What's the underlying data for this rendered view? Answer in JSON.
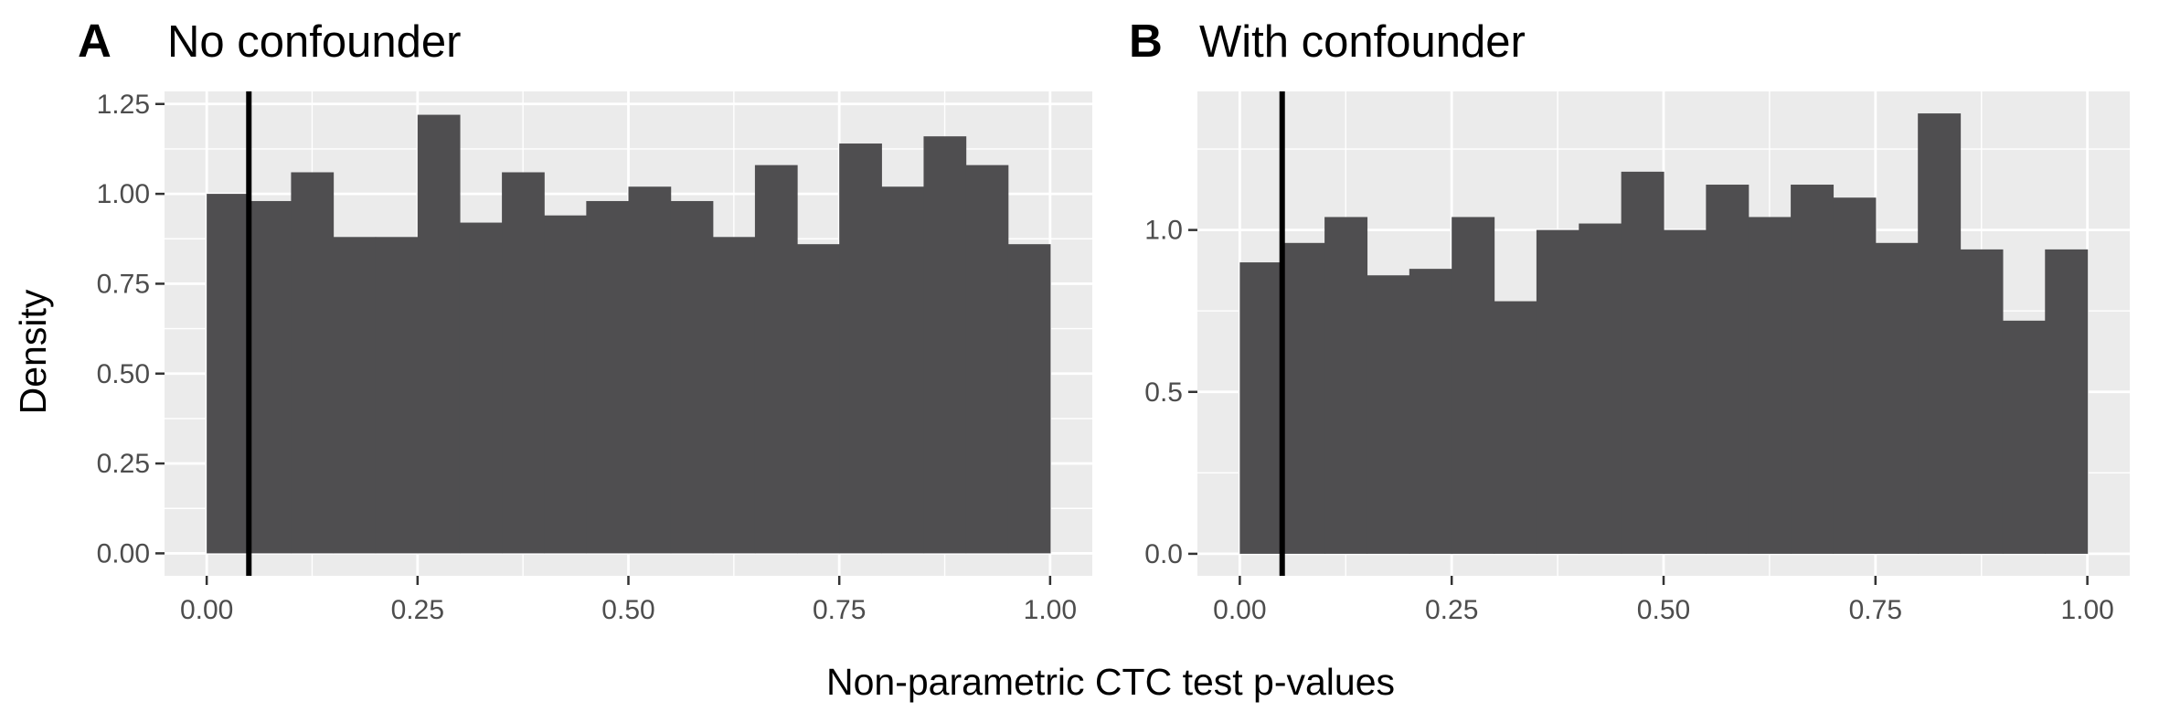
{
  "ylabel": "Density",
  "xlabel": "Non-parametric CTC test p-values",
  "colors": {
    "panel_bg": "#ebebeb",
    "grid": "#ffffff",
    "bar": "#4f4e50",
    "threshold": "#000000"
  },
  "chart_data": [
    {
      "type": "bar",
      "tag": "A",
      "title": "No confounder",
      "bin_width": 0.05,
      "bin_starts": [
        0.0,
        0.05,
        0.1,
        0.15,
        0.2,
        0.25,
        0.3,
        0.35,
        0.4,
        0.45,
        0.5,
        0.55,
        0.6,
        0.65,
        0.7,
        0.75,
        0.8,
        0.85,
        0.9,
        0.95
      ],
      "values": [
        1.0,
        0.98,
        1.06,
        0.88,
        0.88,
        1.22,
        0.92,
        1.06,
        0.94,
        0.98,
        1.02,
        0.98,
        0.88,
        1.08,
        0.86,
        1.14,
        1.02,
        1.16,
        1.08,
        0.86
      ],
      "xlim": [
        -0.05,
        1.05
      ],
      "ylim": [
        -0.0625,
        1.285
      ],
      "x_ticks": [
        0,
        0.25,
        0.5,
        0.75,
        1
      ],
      "x_tick_labels": [
        "0.00",
        "0.25",
        "0.50",
        "0.75",
        "1.00"
      ],
      "y_ticks": [
        0,
        0.25,
        0.5,
        0.75,
        1,
        1.25
      ],
      "y_tick_labels": [
        "0.00",
        "0.25",
        "0.50",
        "0.75",
        "1.00",
        "1.25"
      ],
      "vline": 0.05,
      "grid": true
    },
    {
      "type": "bar",
      "tag": "B",
      "title": "With confounder",
      "bin_width": 0.05,
      "bin_starts": [
        0.0,
        0.05,
        0.1,
        0.15,
        0.2,
        0.25,
        0.3,
        0.35,
        0.4,
        0.45,
        0.5,
        0.55,
        0.6,
        0.65,
        0.7,
        0.75,
        0.8,
        0.85,
        0.9,
        0.95
      ],
      "values": [
        0.9,
        0.96,
        1.04,
        0.86,
        0.88,
        1.04,
        0.78,
        1.0,
        1.02,
        1.18,
        1.0,
        1.14,
        1.04,
        1.14,
        1.1,
        0.96,
        1.36,
        0.94,
        0.72,
        0.94
      ],
      "xlim": [
        -0.05,
        1.05
      ],
      "ylim": [
        -0.068,
        1.428
      ],
      "x_ticks": [
        0,
        0.25,
        0.5,
        0.75,
        1
      ],
      "x_tick_labels": [
        "0.00",
        "0.25",
        "0.50",
        "0.75",
        "1.00"
      ],
      "y_ticks": [
        0,
        0.5,
        1
      ],
      "y_tick_labels": [
        "0.0",
        "0.5",
        "1.0"
      ],
      "vline": 0.05,
      "grid": true
    }
  ]
}
